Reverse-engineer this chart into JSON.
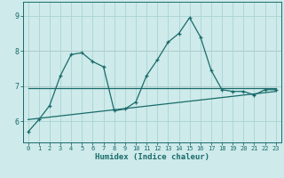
{
  "xlabel": "Humidex (Indice chaleur)",
  "bg_color": "#ceeaea",
  "grid_color": "#aad4d4",
  "line_color": "#1a6b6b",
  "pink_line_color": "#d4a0a0",
  "x_ticks": [
    0,
    1,
    2,
    3,
    4,
    5,
    6,
    7,
    8,
    9,
    10,
    11,
    12,
    13,
    14,
    15,
    16,
    17,
    18,
    19,
    20,
    21,
    22,
    23
  ],
  "y_ticks": [
    6,
    7,
    8,
    9
  ],
  "ylim": [
    5.4,
    9.4
  ],
  "xlim": [
    -0.5,
    23.5
  ],
  "series1_x": [
    0,
    1,
    2,
    3,
    4,
    5,
    6,
    7,
    8,
    9,
    10,
    11,
    12,
    13,
    14,
    15,
    16,
    17,
    18,
    19,
    20,
    21,
    22,
    23
  ],
  "series1_y": [
    5.7,
    6.05,
    6.45,
    7.3,
    7.9,
    7.95,
    7.7,
    7.55,
    6.3,
    6.35,
    6.55,
    7.3,
    7.75,
    8.25,
    8.5,
    8.95,
    8.4,
    7.45,
    6.9,
    6.85,
    6.85,
    6.75,
    6.9,
    6.9
  ],
  "series2_x": [
    0,
    23
  ],
  "series2_y": [
    6.95,
    6.95
  ],
  "series3_x": [
    0,
    23
  ],
  "series3_y": [
    6.05,
    6.85
  ]
}
